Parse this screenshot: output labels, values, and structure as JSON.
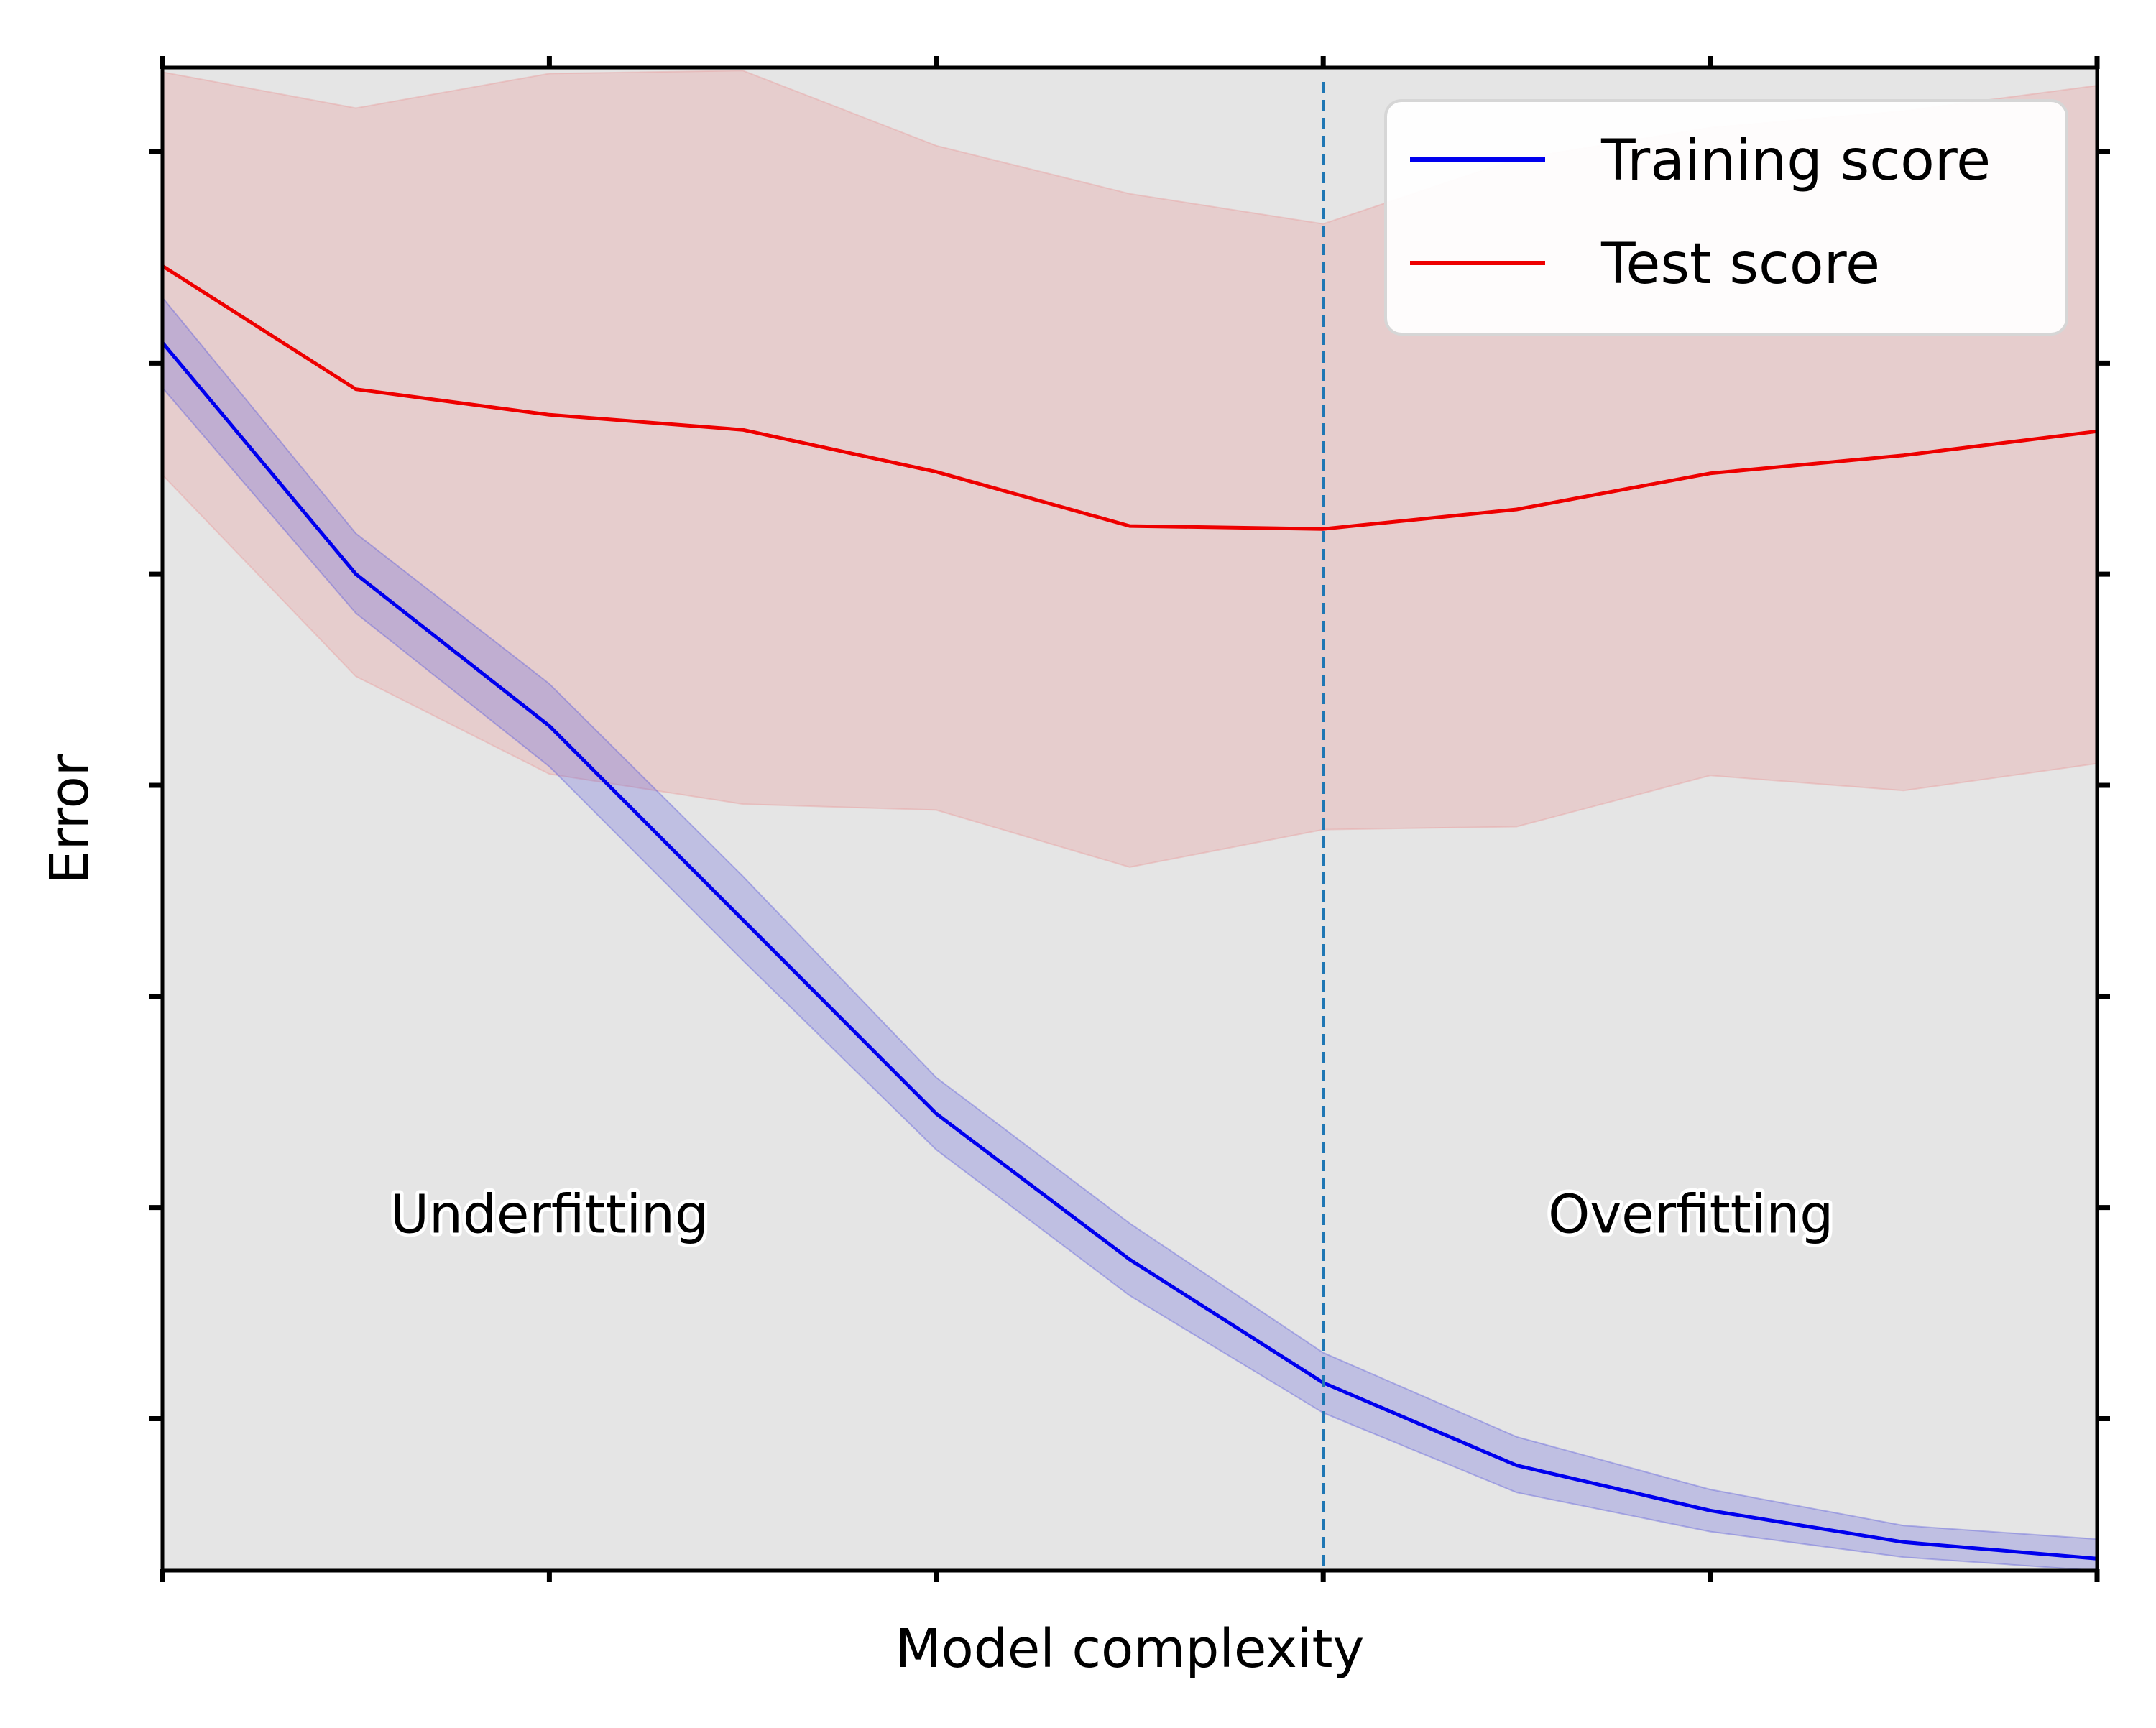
{
  "chart_data": {
    "type": "line",
    "title": "",
    "xlabel": "Model complexity",
    "ylabel": "Error",
    "xlim": [
      0,
      100
    ],
    "ylim": [
      0,
      100
    ],
    "x_ticks_labeled": false,
    "y_ticks_labeled": false,
    "grid": false,
    "legend_placement": "top-right",
    "background_color": "#e5e5e5",
    "series": [
      {
        "name": "Training score",
        "color": "#0000ee",
        "band_color": "#5c5cdc",
        "x": [
          0,
          10,
          20,
          30,
          40,
          50,
          60,
          70,
          80,
          90,
          100
        ],
        "y": [
          81.7,
          66.3,
          56.2,
          43.3,
          30.4,
          20.7,
          12.5,
          7.0,
          4.0,
          1.9,
          0.8
        ],
        "lower": [
          78.7,
          63.7,
          53.5,
          40.6,
          28.0,
          18.3,
          10.5,
          5.2,
          2.6,
          0.9,
          0.0
        ],
        "upper": [
          84.7,
          69.0,
          59.0,
          46.2,
          32.8,
          23.1,
          14.5,
          8.9,
          5.4,
          3.0,
          2.1
        ]
      },
      {
        "name": "Test score",
        "color": "#ee0000",
        "band_color": "#e89a9a",
        "x": [
          0,
          10,
          20,
          30,
          40,
          50,
          60,
          70,
          80,
          90,
          100
        ],
        "y": [
          86.8,
          78.6,
          76.9,
          75.9,
          73.1,
          69.5,
          69.3,
          70.6,
          73.0,
          74.2,
          75.8
        ],
        "lower": [
          72.9,
          59.5,
          53.0,
          51.0,
          50.6,
          46.8,
          49.3,
          49.5,
          52.9,
          51.9,
          53.7
        ],
        "upper": [
          99.7,
          97.3,
          99.6,
          99.8,
          94.8,
          91.6,
          89.6,
          93.9,
          96.0,
          97.1,
          98.8
        ]
      }
    ],
    "vertical_line": {
      "x": 60,
      "color": "#1f77b4",
      "style": "dashed"
    },
    "annotations": [
      {
        "text": "Underfitting",
        "x": 20,
        "y": 22.5
      },
      {
        "text": "Overfitting",
        "x": 79,
        "y": 22.5
      }
    ]
  }
}
